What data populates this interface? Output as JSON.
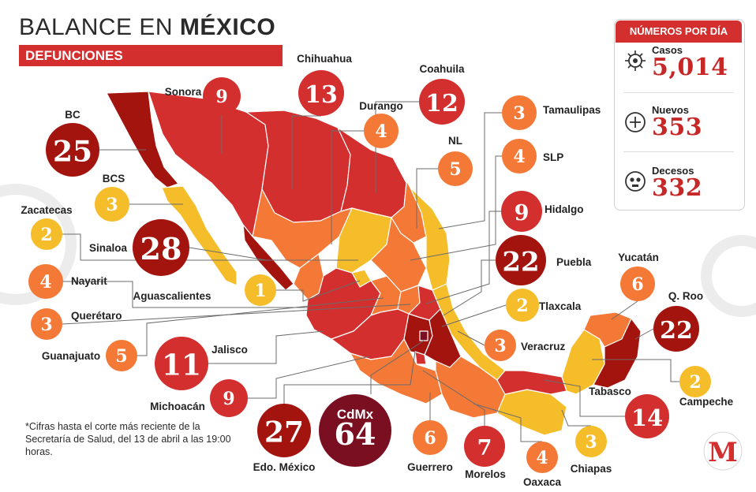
{
  "title": {
    "light": "BALANCE EN ",
    "bold": "MÉXICO"
  },
  "subtitle": "DEFUNCIONES",
  "summary": {
    "header": "NÚMEROS POR DÍA",
    "items": [
      {
        "label": "Casos",
        "value": "5,014",
        "icon": "virus-icon"
      },
      {
        "label": "Nuevos",
        "value": "353",
        "icon": "plus-circle-icon"
      },
      {
        "label": "Decesos",
        "value": "332",
        "icon": "skull-icon"
      }
    ]
  },
  "footnote": "*Cifras hasta el corte más reciente de la Secretaría de Salud, del 13 de abril a las 19:00 horas.",
  "brand": {
    "logo": "M",
    "color": "#d32f2f"
  },
  "legend_scale": {
    "yellow": "#f6bd2b",
    "orange": "#f47836",
    "red": "#d32f2f",
    "dark_red": "#a3140f",
    "maroon": "#7a0f22"
  },
  "map_data": {
    "topic": "Defunciones por estado",
    "states": [
      {
        "name": "BC",
        "value": "25",
        "color": "#a3140f"
      },
      {
        "name": "Sonora",
        "value": "9",
        "color": "#d32f2f"
      },
      {
        "name": "Chihuahua",
        "value": "13",
        "color": "#d32f2f"
      },
      {
        "name": "Coahuila",
        "value": "12",
        "color": "#d32f2f"
      },
      {
        "name": "Durango",
        "value": "4",
        "color": "#f47836"
      },
      {
        "name": "Tamaulipas",
        "value": "3",
        "color": "#f47836"
      },
      {
        "name": "NL",
        "value": "5",
        "color": "#f47836"
      },
      {
        "name": "SLP",
        "value": "4",
        "color": "#f47836"
      },
      {
        "name": "BCS",
        "value": "3",
        "color": "#f6bd2b"
      },
      {
        "name": "Hidalgo",
        "value": "9",
        "color": "#d32f2f"
      },
      {
        "name": "Zacatecas",
        "value": "2",
        "color": "#f6bd2b"
      },
      {
        "name": "Sinaloa",
        "value": "28",
        "color": "#a3140f"
      },
      {
        "name": "Puebla",
        "value": "22",
        "color": "#a3140f"
      },
      {
        "name": "Nayarit",
        "value": "4",
        "color": "#f47836"
      },
      {
        "name": "Yucatán",
        "value": "6",
        "color": "#f47836"
      },
      {
        "name": "Aguascalientes",
        "value": "1",
        "color": "#f6bd2b"
      },
      {
        "name": "Tlaxcala",
        "value": "2",
        "color": "#f6bd2b"
      },
      {
        "name": "Q. Roo",
        "value": "22",
        "color": "#a3140f"
      },
      {
        "name": "Querétaro",
        "value": "3",
        "color": "#f47836"
      },
      {
        "name": "Veracruz",
        "value": "3",
        "color": "#f47836"
      },
      {
        "name": "Guanajuato",
        "value": "5",
        "color": "#f47836"
      },
      {
        "name": "Jalisco",
        "value": "11",
        "color": "#d32f2f"
      },
      {
        "name": "Campeche",
        "value": "2",
        "color": "#f6bd2b"
      },
      {
        "name": "Tabasco",
        "value": "14",
        "color": "#d32f2f"
      },
      {
        "name": "Michoacán",
        "value": "9",
        "color": "#d32f2f"
      },
      {
        "name": "CdMx",
        "value": "64",
        "color": "#7a0f22"
      },
      {
        "name": "Edo. México",
        "value": "27",
        "color": "#a3140f"
      },
      {
        "name": "Guerrero",
        "value": "6",
        "color": "#f47836"
      },
      {
        "name": "Morelos",
        "value": "7",
        "color": "#d32f2f"
      },
      {
        "name": "Oaxaca",
        "value": "4",
        "color": "#f47836"
      },
      {
        "name": "Chiapas",
        "value": "3",
        "color": "#f6bd2b"
      }
    ]
  }
}
